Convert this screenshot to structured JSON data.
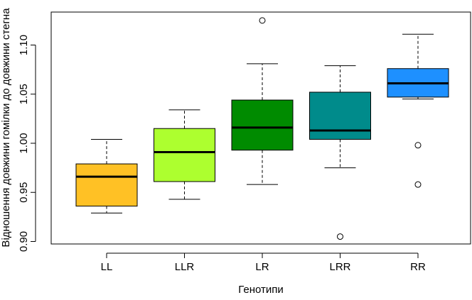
{
  "chart_data": {
    "type": "box",
    "title": "",
    "xlabel": "Генотипи",
    "ylabel": "Відношення довжини гомілки до довжини стегна",
    "ylim": [
      0.895,
      1.13
    ],
    "yticks": [
      0.9,
      0.95,
      1.0,
      1.05,
      1.1
    ],
    "ytick_labels": [
      "0.90",
      "0.95",
      "1.00",
      "1.05",
      "1.10"
    ],
    "grid": false,
    "legend": "none",
    "categories": [
      "LL",
      "LLR",
      "LR",
      "LRR",
      "RR"
    ],
    "boxes": [
      {
        "name": "LL",
        "color": "#FFC125",
        "whisker_low": 0.929,
        "q1": 0.936,
        "median": 0.966,
        "q3": 0.979,
        "whisker_high": 1.004,
        "outliers": []
      },
      {
        "name": "LLR",
        "color": "#ADFF2F",
        "whisker_low": 0.943,
        "q1": 0.961,
        "median": 0.991,
        "q3": 1.015,
        "whisker_high": 1.034,
        "outliers": []
      },
      {
        "name": "LR",
        "color": "#008B00",
        "whisker_low": 0.958,
        "q1": 0.993,
        "median": 1.016,
        "q3": 1.044,
        "whisker_high": 1.081,
        "outliers": [
          1.125
        ]
      },
      {
        "name": "LRR",
        "color": "#008B8B",
        "whisker_low": 0.975,
        "q1": 1.004,
        "median": 1.013,
        "q3": 1.052,
        "whisker_high": 1.079,
        "outliers": [
          0.905
        ]
      },
      {
        "name": "RR",
        "color": "#1E90FF",
        "whisker_low": 1.045,
        "q1": 1.047,
        "median": 1.061,
        "q3": 1.076,
        "whisker_high": 1.111,
        "outliers": [
          0.998,
          0.958
        ]
      }
    ]
  }
}
